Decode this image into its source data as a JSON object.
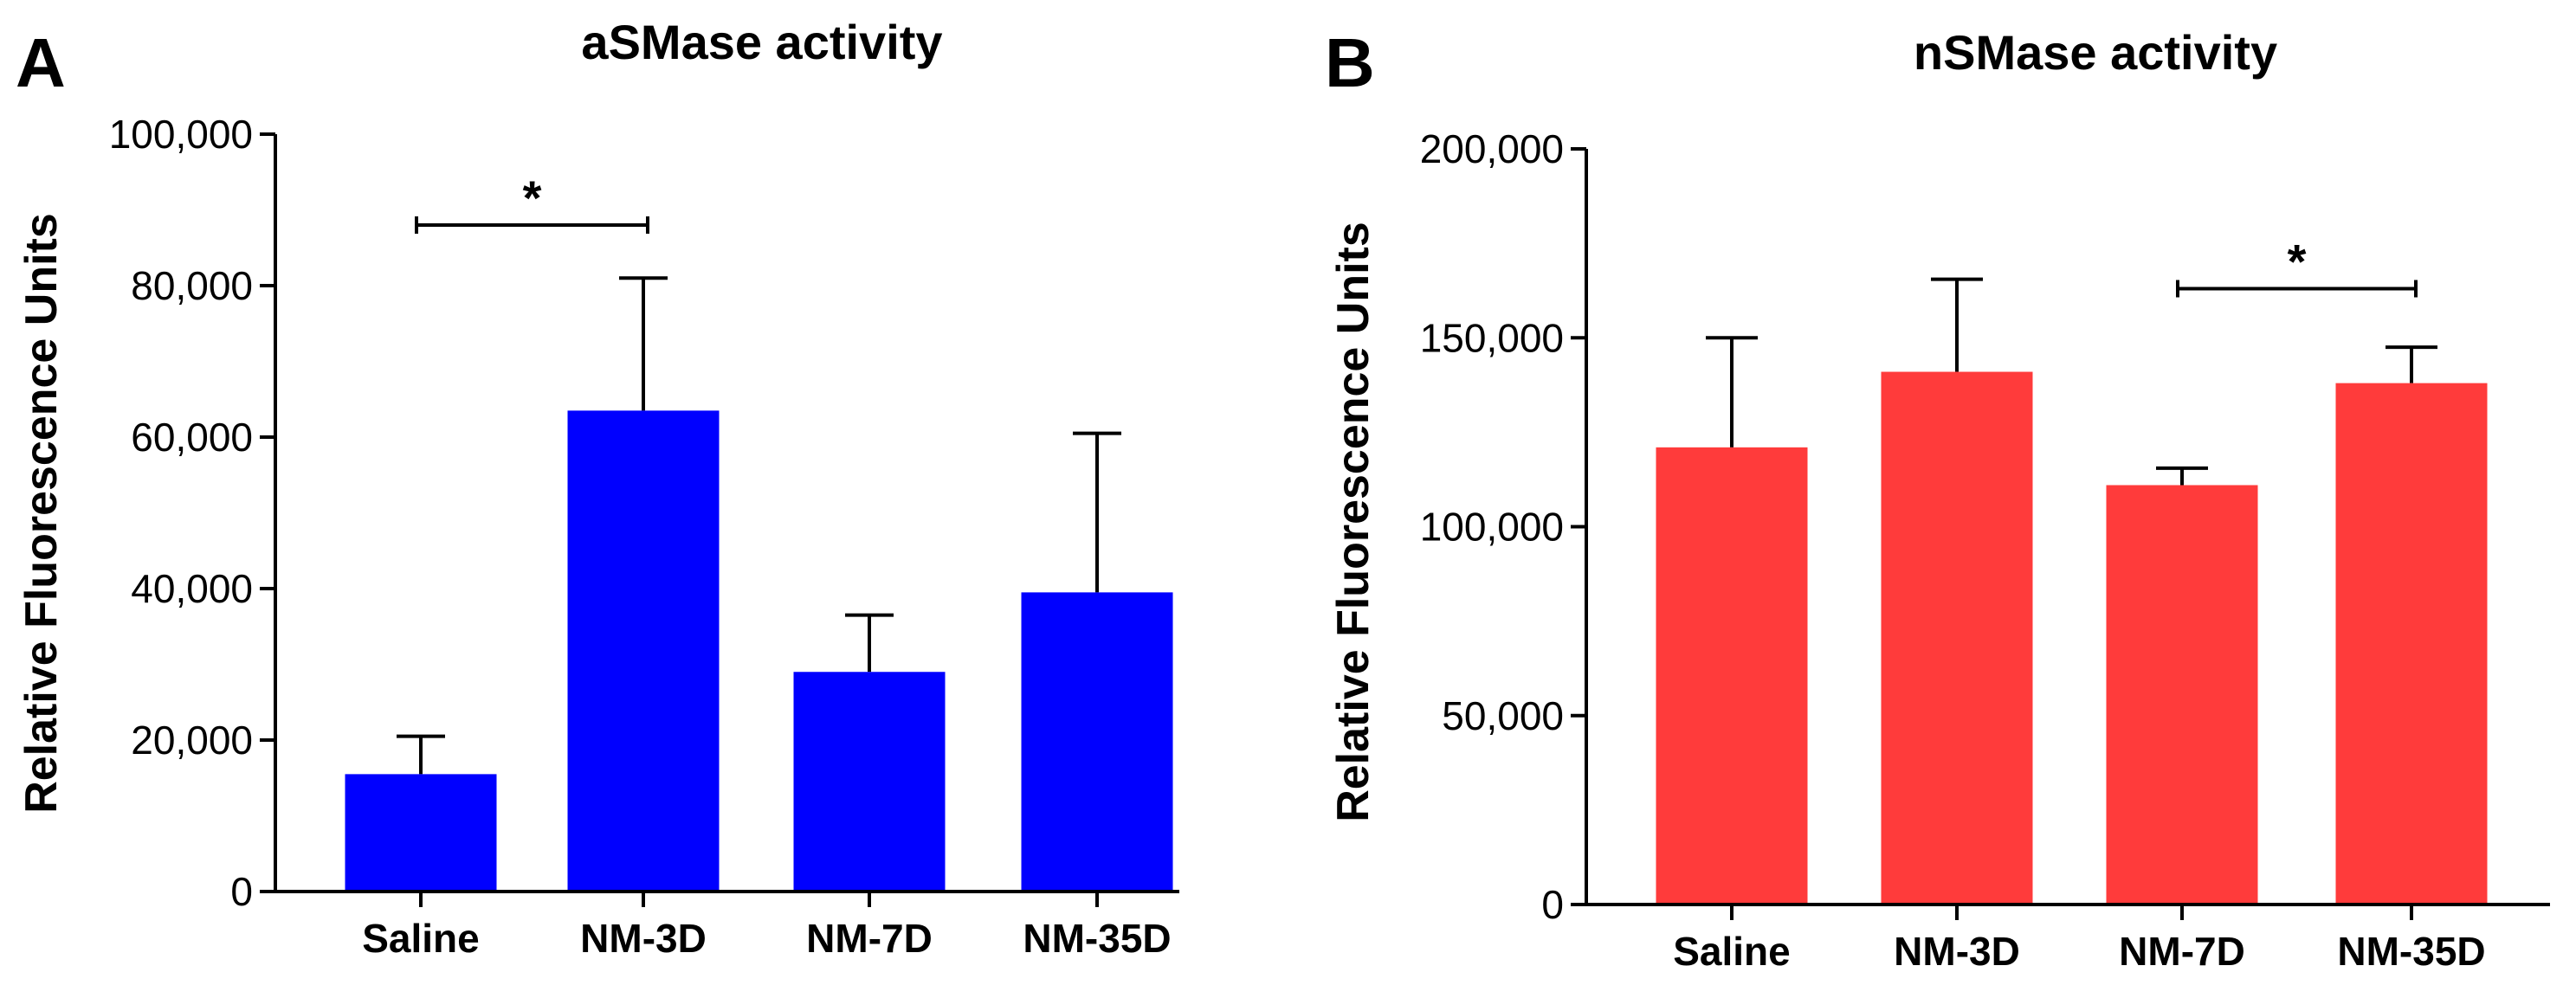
{
  "chart_data": [
    {
      "type": "bar",
      "panel": "A",
      "title": "aSMase activity",
      "xlabel": "",
      "ylabel": "Relative Fluorescence Units",
      "categories": [
        "Saline",
        "NM-3D",
        "NM-7D",
        "NM-35D"
      ],
      "values": [
        15500,
        63500,
        29000,
        39500
      ],
      "error_upper": [
        20500,
        81000,
        36500,
        60500
      ],
      "ylim": [
        0,
        100000
      ],
      "yticks": [
        0,
        20000,
        40000,
        60000,
        80000,
        100000
      ],
      "ytick_labels": [
        "0",
        "20,000",
        "40,000",
        "60,000",
        "80,000",
        "100,000"
      ],
      "color": "#0000ff",
      "significance": [
        {
          "from": 0,
          "to": 1,
          "label": "*",
          "y": 88000
        }
      ],
      "grid": false
    },
    {
      "type": "bar",
      "panel": "B",
      "title": "nSMase activity",
      "xlabel": "",
      "ylabel": "Relative Fluorescence Units",
      "categories": [
        "Saline",
        "NM-3D",
        "NM-7D",
        "NM-35D"
      ],
      "values": [
        121000,
        141000,
        111000,
        138000
      ],
      "error_upper": [
        150000,
        165500,
        115500,
        147500
      ],
      "ylim": [
        0,
        200000
      ],
      "yticks": [
        0,
        50000,
        100000,
        150000,
        200000
      ],
      "ytick_labels": [
        "0",
        "50,000",
        "100,000",
        "150,000",
        "200,000"
      ],
      "color": "#ff3b3b",
      "significance": [
        {
          "from": 2,
          "to": 3,
          "label": "*",
          "y": 163000
        }
      ],
      "grid": false
    }
  ]
}
